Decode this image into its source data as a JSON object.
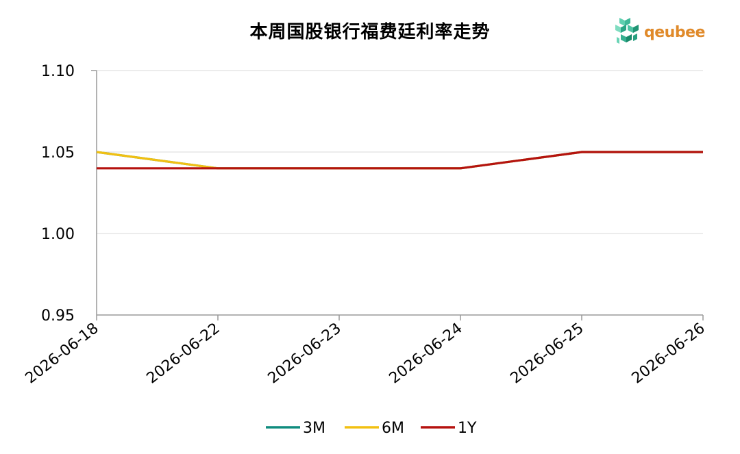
{
  "chart_data": {
    "type": "line",
    "title": "本周国股银行福费廷利率走势",
    "x": [
      "2026-06-18",
      "2026-06-22",
      "2026-06-23",
      "2026-06-24",
      "2026-06-25",
      "2026-06-26"
    ],
    "ylim": [
      0.95,
      1.1
    ],
    "yticks": [
      "0.95",
      "1.00",
      "1.05",
      "1.10"
    ],
    "grid": true,
    "legend_position": "bottom",
    "series": [
      {
        "name": "3M",
        "color": "#0f8c7e",
        "values": [
          1.05,
          1.04,
          1.04,
          1.04,
          1.05,
          1.05
        ]
      },
      {
        "name": "6M",
        "color": "#f2c012",
        "values": [
          1.05,
          1.04,
          1.04,
          1.04,
          1.05,
          1.05
        ]
      },
      {
        "name": "1Y",
        "color": "#b5120f",
        "values": [
          1.04,
          1.04,
          1.04,
          1.04,
          1.05,
          1.05
        ]
      }
    ]
  },
  "logo": {
    "text": "qeubee",
    "icon": "cube-logo-icon"
  }
}
